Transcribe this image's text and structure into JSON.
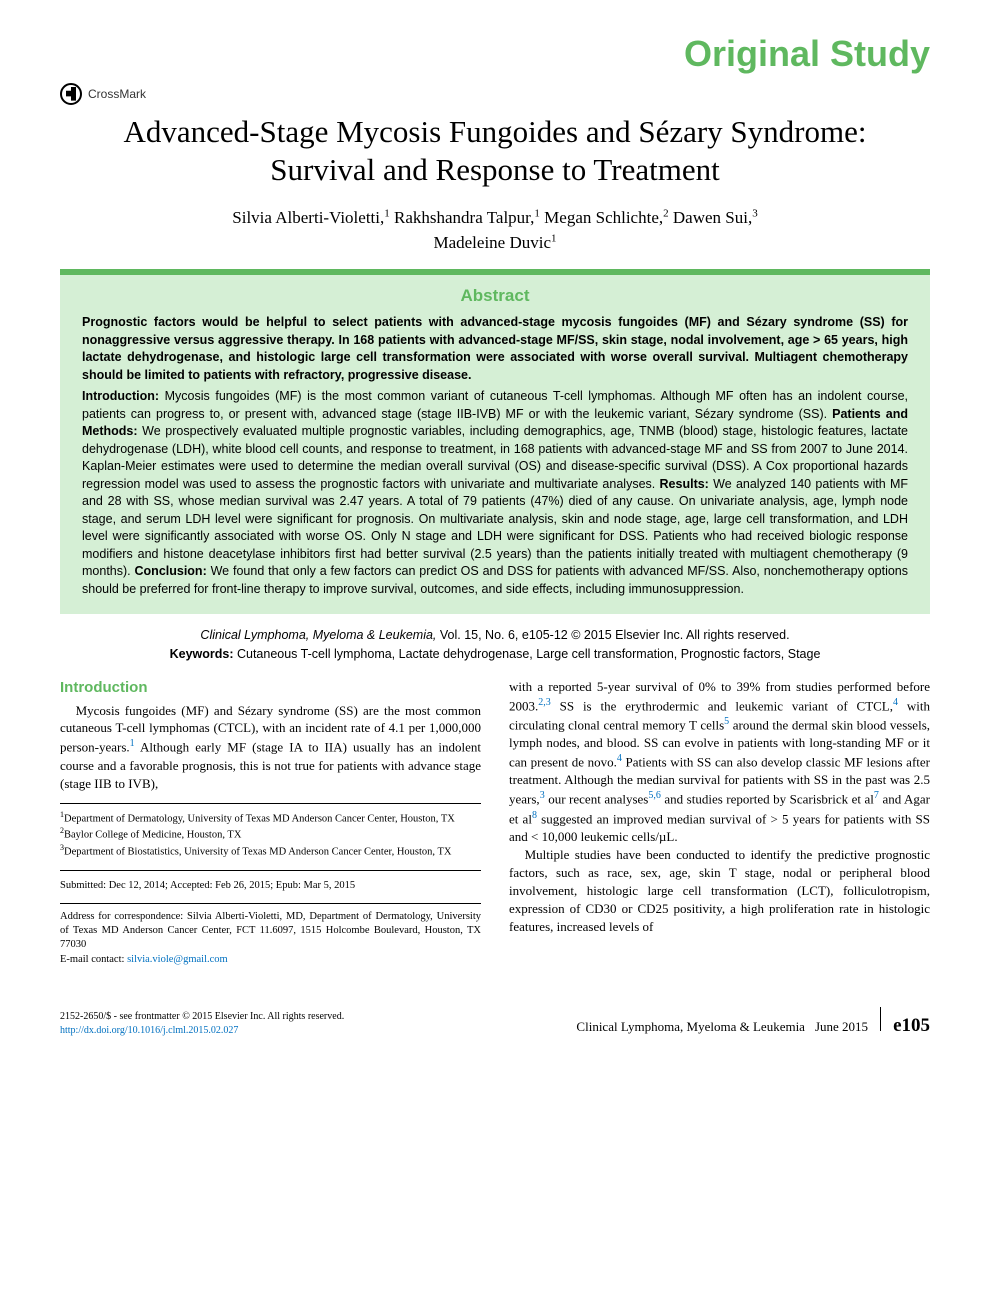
{
  "header": {
    "section_label": "Original Study",
    "crossmark_text": "CrossMark"
  },
  "article": {
    "title": "Advanced-Stage Mycosis Fungoides and Sézary Syndrome: Survival and Response to Treatment",
    "authors_line1": "Silvia Alberti-Violetti,",
    "authors_sup1": "1",
    "authors_a2": " Rakhshandra Talpur,",
    "authors_sup2": "1",
    "authors_a3": " Megan Schlichte,",
    "authors_sup3": "2",
    "authors_a4": " Dawen Sui,",
    "authors_sup4": "3",
    "authors_a5": "Madeleine Duvic",
    "authors_sup5": "1"
  },
  "abstract": {
    "heading": "Abstract",
    "lead": "Prognostic factors would be helpful to select patients with advanced-stage mycosis fungoides (MF) and Sézary syndrome (SS) for nonaggressive versus aggressive therapy. In 168 patients with advanced-stage MF/SS, skin stage, nodal involvement, age > 65 years, high lactate dehydrogenase, and histologic large cell transformation were associated with worse overall survival. Multiagent chemotherapy should be limited to patients with refractory, progressive disease.",
    "body_intro_label": "Introduction:",
    "body_intro": " Mycosis fungoides (MF) is the most common variant of cutaneous T-cell lymphomas. Although MF often has an indolent course, patients can progress to, or present with, advanced stage (stage IIB-IVB) MF or with the leukemic variant, Sézary syndrome (SS). ",
    "body_pm_label": "Patients and Methods:",
    "body_pm": " We prospectively evaluated multiple prognostic variables, including demographics, age, TNMB (blood) stage, histologic features, lactate dehydrogenase (LDH), white blood cell counts, and response to treatment, in 168 patients with advanced-stage MF and SS from 2007 to June 2014. Kaplan-Meier estimates were used to determine the median overall survival (OS) and disease-specific survival (DSS). A Cox proportional hazards regression model was used to assess the prognostic factors with univariate and multivariate analyses. ",
    "body_res_label": "Results:",
    "body_res": " We analyzed 140 patients with MF and 28 with SS, whose median survival was 2.47 years. A total of 79 patients (47%) died of any cause. On univariate analysis, age, lymph node stage, and serum LDH level were significant for prognosis. On multivariate analysis, skin and node stage, age, large cell transformation, and LDH level were significantly associated with worse OS. Only N stage and LDH were significant for DSS. Patients who had received biologic response modifiers and histone deacetylase inhibitors first had better survival (2.5 years) than the patients initially treated with multiagent chemotherapy (9 months). ",
    "body_con_label": "Conclusion:",
    "body_con": " We found that only a few factors can predict OS and DSS for patients with advanced MF/SS. Also, nonchemotherapy options should be preferred for front-line therapy to improve survival, outcomes, and side effects, including immunosuppression."
  },
  "citation": {
    "journal": "Clinical Lymphoma, Myeloma & Leukemia,",
    "vol": " Vol. 15, No. 6, e105-12 © 2015 Elsevier Inc. All rights reserved.",
    "keywords_label": "Keywords:",
    "keywords": " Cutaneous T-cell lymphoma, Lactate dehydrogenase, Large cell transformation, Prognostic factors, Stage"
  },
  "body": {
    "intro_heading": "Introduction",
    "col1_p1_a": "Mycosis fungoides (MF) and Sézary syndrome (SS) are the most common cutaneous T-cell lymphomas (CTCL), with an incident rate of 4.1 per 1,000,000 person-years.",
    "col1_ref1": "1",
    "col1_p1_b": " Although early MF (stage IA to IIA) usually has an indolent course and a favorable prognosis, this is not true for patients with advance stage (stage IIB to IVB),",
    "col2_p1_a": "with a reported 5-year survival of 0% to 39% from studies performed before 2003.",
    "col2_ref23": "2,3",
    "col2_p1_b": " SS is the erythrodermic and leukemic variant of CTCL,",
    "col2_ref4a": "4",
    "col2_p1_c": " with circulating clonal central memory T cells",
    "col2_ref5": "5",
    "col2_p1_d": " around the dermal skin blood vessels, lymph nodes, and blood. SS can evolve in patients with long-standing MF or it can present de novo.",
    "col2_ref4b": "4",
    "col2_p1_e": " Patients with SS can also develop classic MF lesions after treatment. Although the median survival for patients with SS in the past was 2.5 years,",
    "col2_ref3": "3",
    "col2_p1_f": " our recent analyses",
    "col2_ref56": "5,6",
    "col2_p1_g": " and studies reported by Scarisbrick et al",
    "col2_ref7": "7",
    "col2_p1_h": " and Agar et al",
    "col2_ref8": "8",
    "col2_p1_i": " suggested an improved median survival of > 5 years for patients with SS and < 10,000 leukemic cells/µL.",
    "col2_p2": "Multiple studies have been conducted to identify the predictive prognostic factors, such as race, sex, age, skin T stage, nodal or peripheral blood involvement, histologic large cell transformation (LCT), folliculotropism, expression of CD30 or CD25 positivity, a high proliferation rate in histologic features, increased levels of"
  },
  "affiliations": {
    "a1": "Department of Dermatology, University of Texas MD Anderson Cancer Center, Houston, TX",
    "a2": "Baylor College of Medicine, Houston, TX",
    "a3": "Department of Biostatistics, University of Texas MD Anderson Cancer Center, Houston, TX",
    "dates": "Submitted: Dec 12, 2014; Accepted: Feb 26, 2015; Epub: Mar 5, 2015",
    "corr": "Address for correspondence: Silvia Alberti-Violetti, MD, Department of Dermatology, University of Texas MD Anderson Cancer Center, FCT 11.6097, 1515 Holcombe Boulevard, Houston, TX 77030",
    "email_label": "E-mail contact: ",
    "email": "silvia.viole@gmail.com"
  },
  "footer": {
    "issn": "2152-2650/$ - see frontmatter © 2015 Elsevier Inc. All rights reserved.",
    "doi": "http://dx.doi.org/10.1016/j.clml.2015.02.027",
    "journal": "Clinical Lymphoma, Myeloma & Leukemia",
    "date": "  June 2015",
    "page": "e105"
  },
  "colors": {
    "accent_green": "#5fb85f",
    "abstract_bg": "#d5efd5",
    "link_blue": "#0070c0"
  }
}
